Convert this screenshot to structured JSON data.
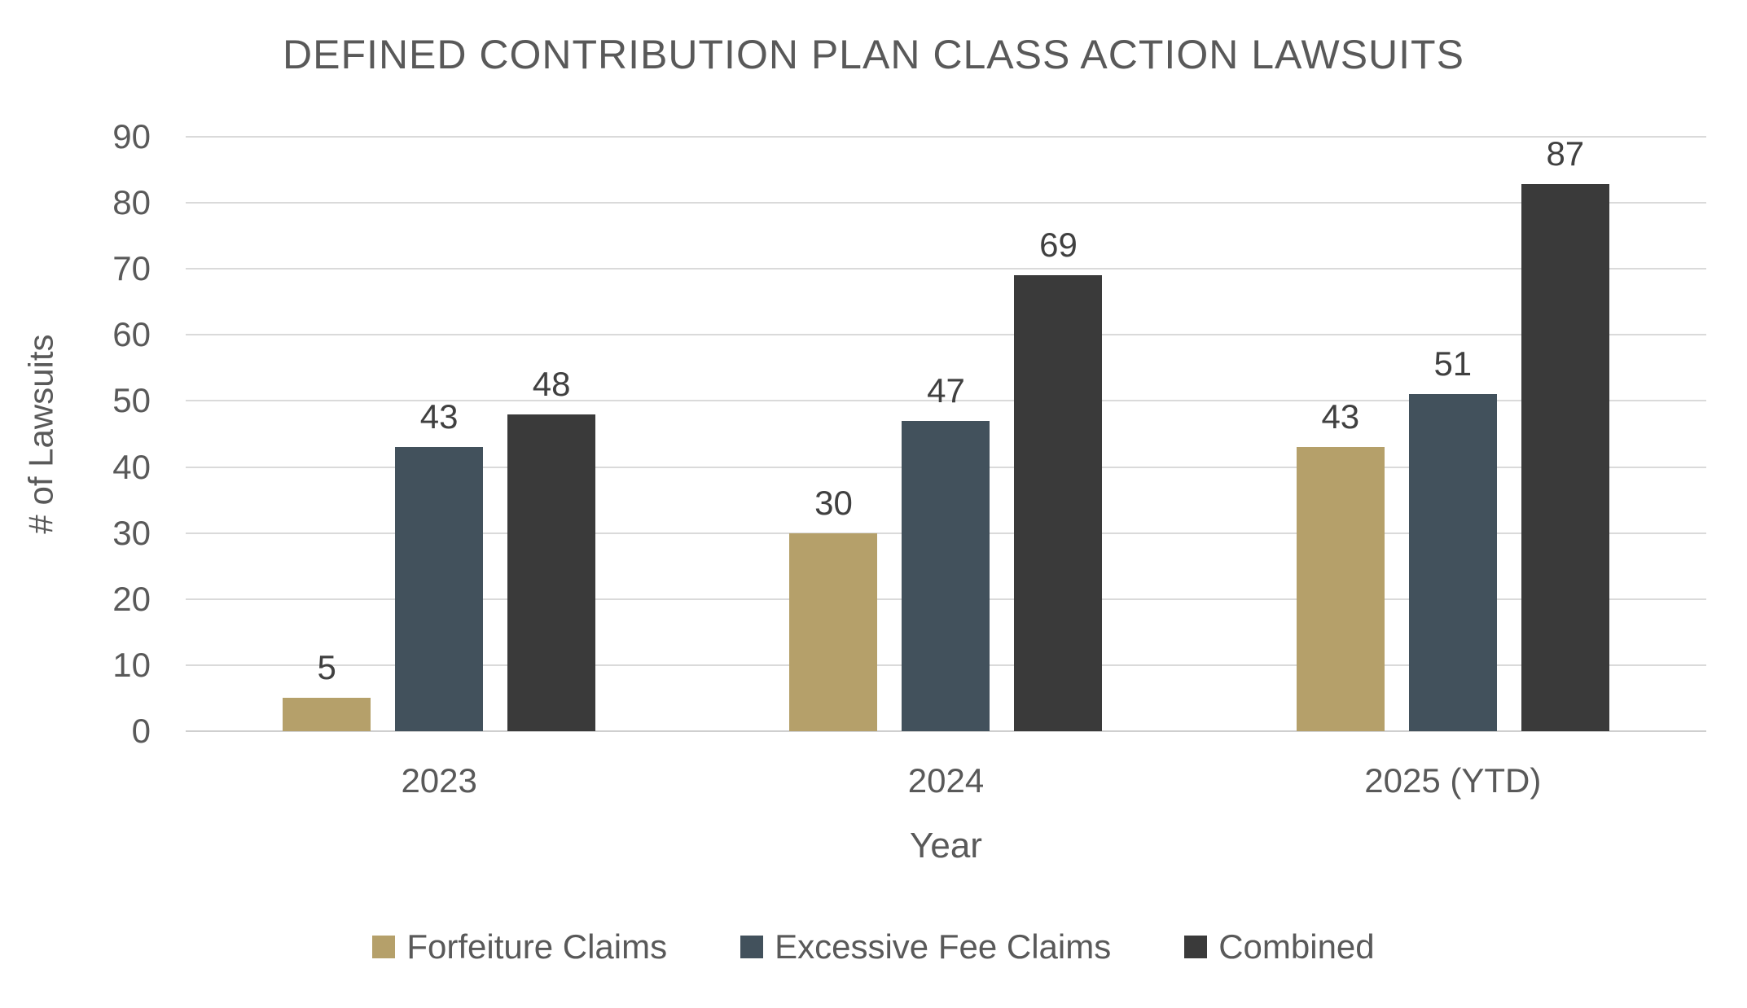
{
  "chart_data": {
    "type": "bar",
    "title": "DEFINED CONTRIBUTION PLAN CLASS ACTION LAWSUITS",
    "xlabel": "Year",
    "ylabel": "# of Lawsuits",
    "categories": [
      "2023",
      "2024",
      "2025 (YTD)"
    ],
    "series": [
      {
        "name": "Forfeiture Claims",
        "color": "#b5a06a",
        "values": [
          5,
          30,
          43
        ]
      },
      {
        "name": "Excessive Fee Claims",
        "color": "#42515c",
        "values": [
          43,
          47,
          51
        ]
      },
      {
        "name": "Combined",
        "color": "#3a3a3a",
        "values": [
          48,
          69,
          87
        ]
      }
    ],
    "ylim": [
      0,
      90
    ],
    "ytick_step": 10,
    "yticks": [
      0,
      10,
      20,
      30,
      40,
      50,
      60,
      70,
      80,
      90
    ],
    "grid": true,
    "gridline_color": "#dadada",
    "axis_text_color": "#595959",
    "value_label_color": "#404040",
    "data_labels": true,
    "legend_position": "bottom"
  }
}
